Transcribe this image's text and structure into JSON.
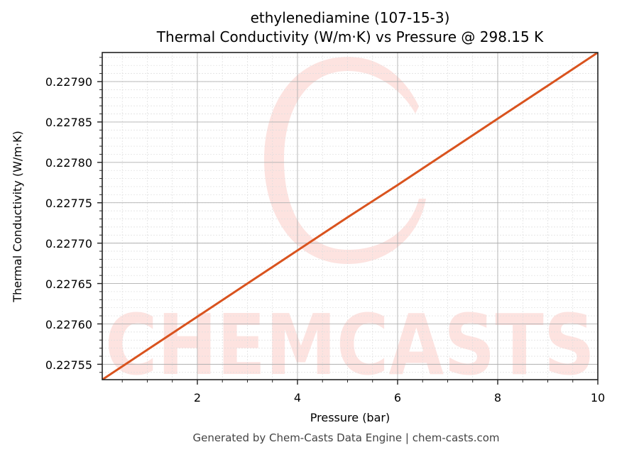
{
  "header": {
    "title_line1": "ethylenediamine (107-15-3)",
    "title_line2": "Thermal Conductivity (W/m·K) vs Pressure @ 298.15 K"
  },
  "axes": {
    "xlabel": "Pressure (bar)",
    "ylabel": "Thermal Conductivity (W/m·K)",
    "x_ticks": [
      "2",
      "4",
      "6",
      "8",
      "10"
    ],
    "y_ticks": [
      "0.22755",
      "0.22760",
      "0.22765",
      "0.22770",
      "0.22775",
      "0.22780",
      "0.22785",
      "0.22790"
    ]
  },
  "watermark": {
    "text": "CHEMCASTS"
  },
  "footer": {
    "text": "Generated by Chem-Casts Data Engine | chem-casts.com"
  },
  "colors": {
    "line": "#d9531e",
    "watermark": "#fde3e0",
    "grid_major": "#b0b0b0",
    "grid_minor": "#dddddd"
  },
  "chart_data": {
    "type": "line",
    "title": "ethylenediamine (107-15-3)\nThermal Conductivity (W/m·K) vs Pressure @ 298.15 K",
    "xlabel": "Pressure (bar)",
    "ylabel": "Thermal Conductivity (W/m·K)",
    "xlim": [
      0.1,
      10
    ],
    "ylim": [
      0.227531,
      0.227936
    ],
    "x_ticks": [
      2,
      4,
      6,
      8,
      10
    ],
    "y_ticks": [
      0.22755,
      0.2276,
      0.22765,
      0.2277,
      0.22775,
      0.2278,
      0.22785,
      0.2279
    ],
    "grid": true,
    "minor_grid": true,
    "legend": null,
    "series": [
      {
        "name": "Thermal Conductivity",
        "color": "#d9531e",
        "x": [
          0.1,
          1,
          2,
          3,
          4,
          5,
          6,
          7,
          8,
          9,
          10
        ],
        "values": [
          0.227531,
          0.227568,
          0.227609,
          0.22765,
          0.227691,
          0.227732,
          0.227772,
          0.227813,
          0.227854,
          0.227895,
          0.227936
        ]
      }
    ],
    "footer": "Generated by Chem-Casts Data Engine | chem-casts.com"
  }
}
